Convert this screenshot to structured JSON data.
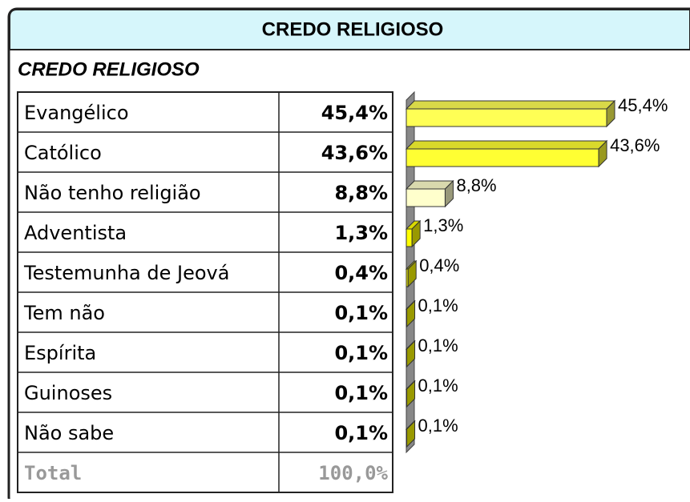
{
  "header": {
    "title": "CREDO RELIGIOSO"
  },
  "chart_data": {
    "type": "bar",
    "orientation": "horizontal",
    "title": "CREDO RELIGIOSO",
    "categories": [
      "Evangélico",
      "Católico",
      "Não tenho religião",
      "Adventista",
      "Testemunha de Jeová",
      "Tem não",
      "Espírita",
      "Guinoses",
      "Não sabe"
    ],
    "values": [
      45.4,
      43.6,
      8.8,
      1.3,
      0.4,
      0.1,
      0.1,
      0.1,
      0.1
    ],
    "value_labels": [
      "45,4%",
      "43,6%",
      "8,8%",
      "1,3%",
      "0,4%",
      "0,1%",
      "0,1%",
      "0,1%",
      "0,1%"
    ],
    "colors": [
      "#ffff55",
      "#ffff33",
      "#ffffcc",
      "#ffff00",
      "#ffff00",
      "#ffff00",
      "#ffff00",
      "#ffff00",
      "#ffff00"
    ],
    "total": {
      "label": "Total",
      "value": 100,
      "value_label": "100,0%"
    }
  }
}
